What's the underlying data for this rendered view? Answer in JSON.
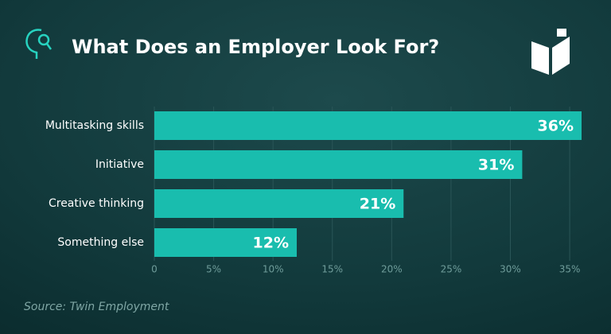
{
  "chart_data": {
    "type": "bar",
    "orientation": "horizontal",
    "title": "What Does an Employer Look For?",
    "source": "Source: Twin Employment",
    "categories": [
      "Multitasking skills",
      "Initiative",
      "Creative thinking",
      "Something else"
    ],
    "values": [
      36,
      31,
      21,
      12
    ],
    "value_labels": [
      "36%",
      "31%",
      "21%",
      "12%"
    ],
    "color": "#19bdae",
    "xlim": [
      0,
      36
    ],
    "xticks": [
      0,
      {
        "value": 5,
        "label": "5%"
      },
      {
        "value": 10,
        "label": "10%"
      },
      {
        "value": 15,
        "label": "15%"
      },
      {
        "value": 20,
        "label": "20%"
      },
      {
        "value": 25,
        "label": "25%"
      },
      {
        "value": 30,
        "label": "30%"
      },
      {
        "value": 35,
        "label": "35%"
      }
    ],
    "grid": true
  }
}
